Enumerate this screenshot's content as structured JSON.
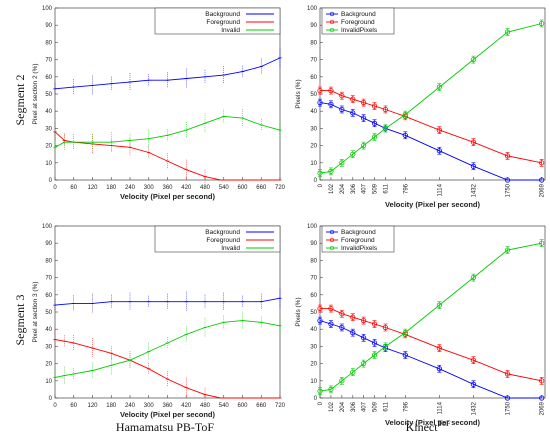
{
  "labels": {
    "row1": "Segment 2",
    "row2": "Segment 3",
    "col1": "Hamamatsu PB-ToF",
    "col2_main": "Kinect",
    "col2_sup": "ToF"
  },
  "chart_data": [
    {
      "id": "ham-seg2",
      "type": "line",
      "ylabel": "Pixel  at section 2 (%)",
      "xlabel": "Velocity (Pixel per second)",
      "xlim": [
        0,
        720
      ],
      "ylim": [
        0,
        100
      ],
      "xticks": [
        "0",
        "60",
        "120",
        "180",
        "240",
        "300",
        "360",
        "420",
        "480",
        "540",
        "600",
        "660",
        "720"
      ],
      "yticks": [
        "0",
        "10",
        "20",
        "30",
        "40",
        "50",
        "60",
        "70",
        "80",
        "90",
        "100"
      ],
      "legend": [
        "Background",
        "Foreground",
        "Invalid"
      ],
      "series": [
        {
          "name": "Background",
          "color": "#0000ff",
          "x": [
            0,
            60,
            120,
            180,
            240,
            300,
            360,
            420,
            480,
            540,
            600,
            660,
            720
          ],
          "y": [
            53,
            54,
            55,
            56,
            57,
            58,
            58,
            59,
            60,
            61,
            63,
            66,
            71
          ]
        },
        {
          "name": "Foreground",
          "color": "#ff0000",
          "x": [
            0,
            30,
            60,
            120,
            180,
            240,
            300,
            360,
            420,
            480,
            530,
            720
          ],
          "y": [
            28,
            23,
            22,
            21,
            20,
            19,
            16,
            11,
            6,
            2,
            0,
            0
          ]
        },
        {
          "name": "Invalid",
          "color": "#00cc00",
          "x": [
            0,
            30,
            60,
            120,
            180,
            240,
            300,
            360,
            420,
            480,
            540,
            600,
            660,
            720
          ],
          "y": [
            19,
            22,
            22,
            22,
            22,
            23,
            24,
            26,
            29,
            33,
            37,
            36,
            32,
            29
          ]
        }
      ]
    },
    {
      "id": "kin-seg2",
      "type": "line",
      "ylabel": "Pixels (%)",
      "xlabel": "Velocity (Pixel per second)",
      "xlim": [
        0,
        2100
      ],
      "ylim": [
        0,
        100
      ],
      "xticks": [
        0,
        102,
        204,
        306,
        407,
        509,
        611,
        796,
        1114,
        1432,
        1750,
        2069
      ],
      "yticks": [
        "0",
        "10",
        "20",
        "30",
        "40",
        "50",
        "60",
        "70",
        "80",
        "90",
        "100"
      ],
      "legend": [
        "Background",
        "Foreground",
        "InvalidPixels"
      ],
      "series": [
        {
          "name": "Background",
          "color": "#0000ff",
          "x": [
            0,
            102,
            204,
            306,
            407,
            509,
            611,
            796,
            1114,
            1432,
            1750,
            2069
          ],
          "y": [
            45,
            44,
            41,
            39,
            36,
            33,
            30,
            26,
            17,
            8,
            0,
            0
          ]
        },
        {
          "name": "Foreground",
          "color": "#ff0000",
          "x": [
            0,
            102,
            204,
            306,
            407,
            509,
            611,
            796,
            1114,
            1432,
            1750,
            2069
          ],
          "y": [
            52,
            52,
            49,
            47,
            45,
            43,
            41,
            37,
            29,
            22,
            14,
            10
          ]
        },
        {
          "name": "InvalidPixels",
          "color": "#00cc00",
          "x": [
            0,
            102,
            204,
            306,
            407,
            509,
            611,
            796,
            1114,
            1432,
            1750,
            2069
          ],
          "y": [
            4,
            5,
            10,
            15,
            20,
            25,
            30,
            38,
            54,
            70,
            86,
            91
          ]
        }
      ]
    },
    {
      "id": "ham-seg3",
      "type": "line",
      "ylabel": "Pixel  at section 3 (%)",
      "xlabel": "Velocity (Pixel per second)",
      "xlim": [
        0,
        720
      ],
      "ylim": [
        0,
        100
      ],
      "xticks": [
        "0",
        "60",
        "120",
        "180",
        "240",
        "300",
        "360",
        "420",
        "480",
        "540",
        "600",
        "660",
        "720"
      ],
      "yticks": [
        "0",
        "10",
        "20",
        "30",
        "40",
        "50",
        "60",
        "70",
        "80",
        "90",
        "100"
      ],
      "legend": [
        "Background",
        "Foreground",
        "Invalid"
      ],
      "series": [
        {
          "name": "Background",
          "color": "#0000ff",
          "x": [
            0,
            60,
            120,
            180,
            240,
            300,
            360,
            420,
            480,
            540,
            600,
            660,
            720
          ],
          "y": [
            54,
            55,
            55,
            56,
            56,
            56,
            56,
            56,
            56,
            56,
            56,
            56,
            58
          ]
        },
        {
          "name": "Foreground",
          "color": "#ff0000",
          "x": [
            0,
            30,
            60,
            120,
            180,
            240,
            300,
            360,
            420,
            480,
            530,
            720
          ],
          "y": [
            34,
            33,
            32,
            29,
            26,
            22,
            17,
            11,
            6,
            2,
            0,
            0
          ]
        },
        {
          "name": "Invalid",
          "color": "#00cc00",
          "x": [
            0,
            30,
            60,
            120,
            180,
            240,
            300,
            360,
            420,
            480,
            540,
            600,
            660,
            720
          ],
          "y": [
            12,
            13,
            14,
            16,
            19,
            22,
            27,
            32,
            37,
            41,
            44,
            45,
            44,
            42
          ]
        }
      ]
    },
    {
      "id": "kin-seg3",
      "type": "line",
      "ylabel": "Pixels (%)",
      "xlabel": "Velocity (Pixel per second)",
      "xlim": [
        0,
        2100
      ],
      "ylim": [
        0,
        100
      ],
      "xticks": [
        0,
        102,
        204,
        306,
        407,
        509,
        611,
        796,
        1114,
        1432,
        1750,
        2069
      ],
      "yticks": [
        "0",
        "10",
        "20",
        "30",
        "40",
        "50",
        "60",
        "70",
        "80",
        "90",
        "100"
      ],
      "legend": [
        "Background",
        "Foreground",
        "InvalidPixels"
      ],
      "series": [
        {
          "name": "Background",
          "color": "#0000ff",
          "x": [
            0,
            102,
            204,
            306,
            407,
            509,
            611,
            796,
            1114,
            1432,
            1750,
            2069
          ],
          "y": [
            45,
            43,
            41,
            38,
            35,
            32,
            29,
            25,
            17,
            8,
            0,
            0
          ]
        },
        {
          "name": "Foreground",
          "color": "#ff0000",
          "x": [
            0,
            102,
            204,
            306,
            407,
            509,
            611,
            796,
            1114,
            1432,
            1750,
            2069
          ],
          "y": [
            52,
            52,
            49,
            47,
            45,
            43,
            41,
            37,
            29,
            22,
            14,
            10
          ]
        },
        {
          "name": "InvalidPixels",
          "color": "#00cc00",
          "x": [
            0,
            102,
            204,
            306,
            407,
            509,
            611,
            796,
            1114,
            1432,
            1750,
            2069
          ],
          "y": [
            4,
            5,
            10,
            15,
            20,
            25,
            30,
            38,
            54,
            70,
            86,
            90
          ]
        }
      ]
    }
  ]
}
